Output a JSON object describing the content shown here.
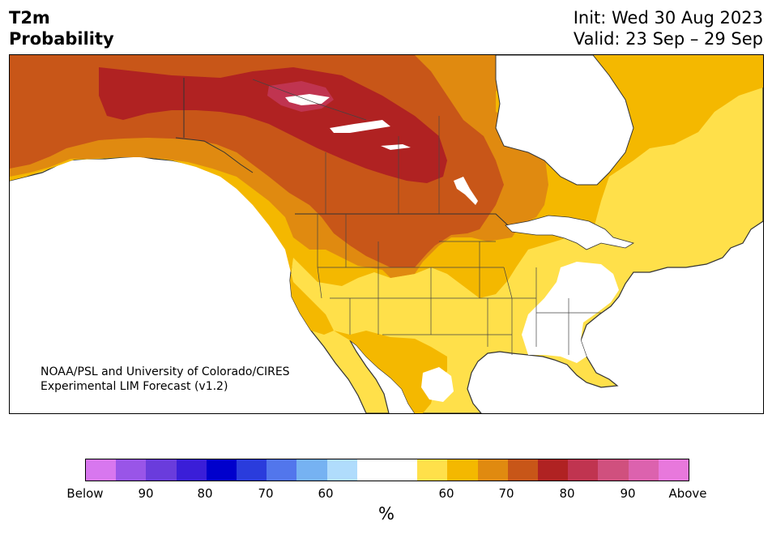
{
  "title": {
    "left_line1": "T2m",
    "left_line2": "Probability",
    "right_line1": "Init: Wed 30 Aug 2023",
    "right_line2": "Valid: 23 Sep – 29 Sep"
  },
  "credit": {
    "line1": "NOAA/PSL and University of Colorado/CIRES",
    "line2": "Experimental LIM Forecast (v1.2)"
  },
  "colorbar": {
    "colors": [
      "#d877ef",
      "#9955e8",
      "#6a3cdc",
      "#3a1ed8",
      "#0000cc",
      "#2a3cdc",
      "#5276ec",
      "#76b2f2",
      "#b0dcfc",
      "#ffffff",
      "#ffffff",
      "#ffe04a",
      "#f4b800",
      "#e08a10",
      "#c85618",
      "#b02222",
      "#c03450",
      "#d0507e",
      "#dc62ae",
      "#e878dc"
    ],
    "tick_labels": [
      "Below",
      "90",
      "80",
      "70",
      "60",
      "60",
      "70",
      "80",
      "90",
      "Above"
    ],
    "unit": "%"
  },
  "map_colors": {
    "land_base": "#ffe04a",
    "level_65": "#f4b800",
    "level_70": "#e08a10",
    "level_75": "#c85618",
    "level_80": "#b02222",
    "level_85": "#c03450",
    "normal": "#ffffff",
    "ocean": "#ffffff",
    "coast": "#333333"
  }
}
